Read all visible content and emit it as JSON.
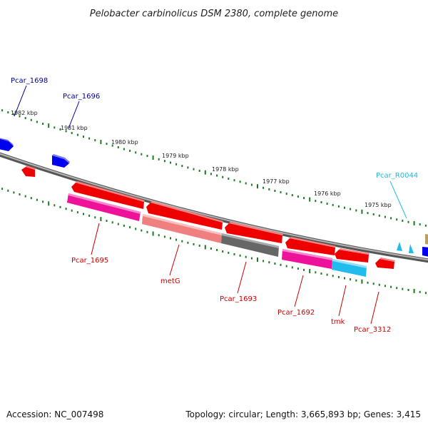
{
  "title": "Pelobacter carbinolicus DSM 2380, complete genome",
  "colors": {
    "backbone": "#8a8a8a",
    "tick": "#1f7a1f",
    "red": "#ee0000",
    "pink": "#ee1199",
    "salmon": "#f08080",
    "gray": "#666666",
    "cyan": "#22bbee",
    "blue": "#0000ee",
    "olive": "#b8a060",
    "label_red": "#cc0000",
    "label_blue": "#000099",
    "label_cyan": "#22bbdd"
  },
  "scale": {
    "labels": [
      "1982 kbp",
      "1981 kbp",
      "1980 kbp",
      "1979 kbp",
      "1978 kbp",
      "1977 kbp",
      "1976 kbp",
      "1975 kbp"
    ]
  },
  "genes": {
    "pcar_1698": "Pcar_1698",
    "pcar_1696": "Pcar_1696",
    "pcar_1695": "Pcar_1695",
    "metg": "metG",
    "pcar_1693": "Pcar_1693",
    "pcar_1692": "Pcar_1692",
    "tmk": "tmk",
    "pcar_3312": "Pcar_3312",
    "pcar_r0044": "Pcar_R0044"
  },
  "footer": {
    "accession": "Accession: NC_007498",
    "topology": "Topology: circular; Length: 3,665,893 bp; Genes: 3,415"
  }
}
